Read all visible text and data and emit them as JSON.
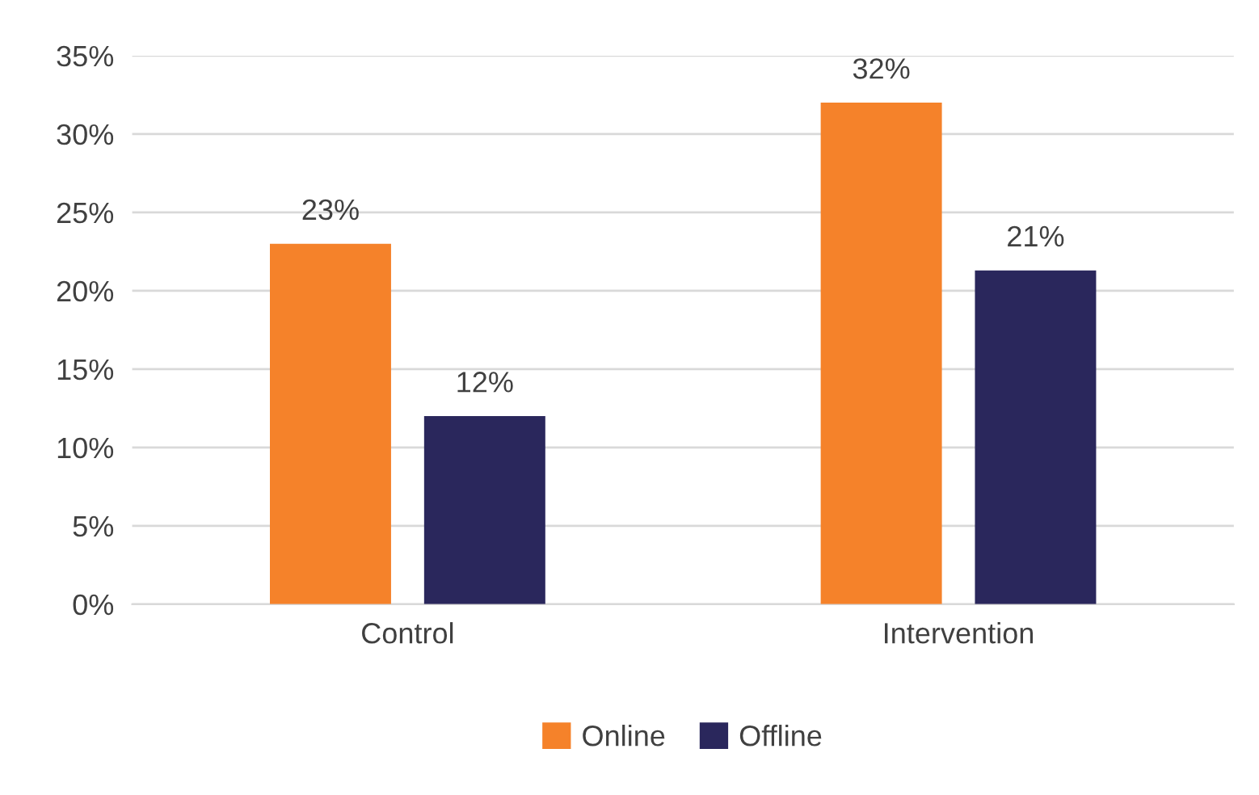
{
  "chart_data": {
    "type": "bar",
    "categories": [
      "Control",
      "Intervention"
    ],
    "series": [
      {
        "name": "Online",
        "color": "#f5822a",
        "values": [
          23,
          32
        ],
        "value_labels": [
          "23%",
          "32%"
        ]
      },
      {
        "name": "Offline",
        "color": "#2a275c",
        "values": [
          12,
          21.3
        ],
        "value_labels": [
          "12%",
          "21%"
        ]
      }
    ],
    "ylim": [
      0,
      35
    ],
    "yticks": [
      {
        "value": 0,
        "label": "0%"
      },
      {
        "value": 5,
        "label": "5%"
      },
      {
        "value": 10,
        "label": "10%"
      },
      {
        "value": 15,
        "label": "15%"
      },
      {
        "value": 20,
        "label": "20%"
      },
      {
        "value": 25,
        "label": "25%"
      },
      {
        "value": 30,
        "label": "30%"
      },
      {
        "value": 35,
        "label": "35%"
      }
    ],
    "grid": "y",
    "legend": "bottom"
  }
}
